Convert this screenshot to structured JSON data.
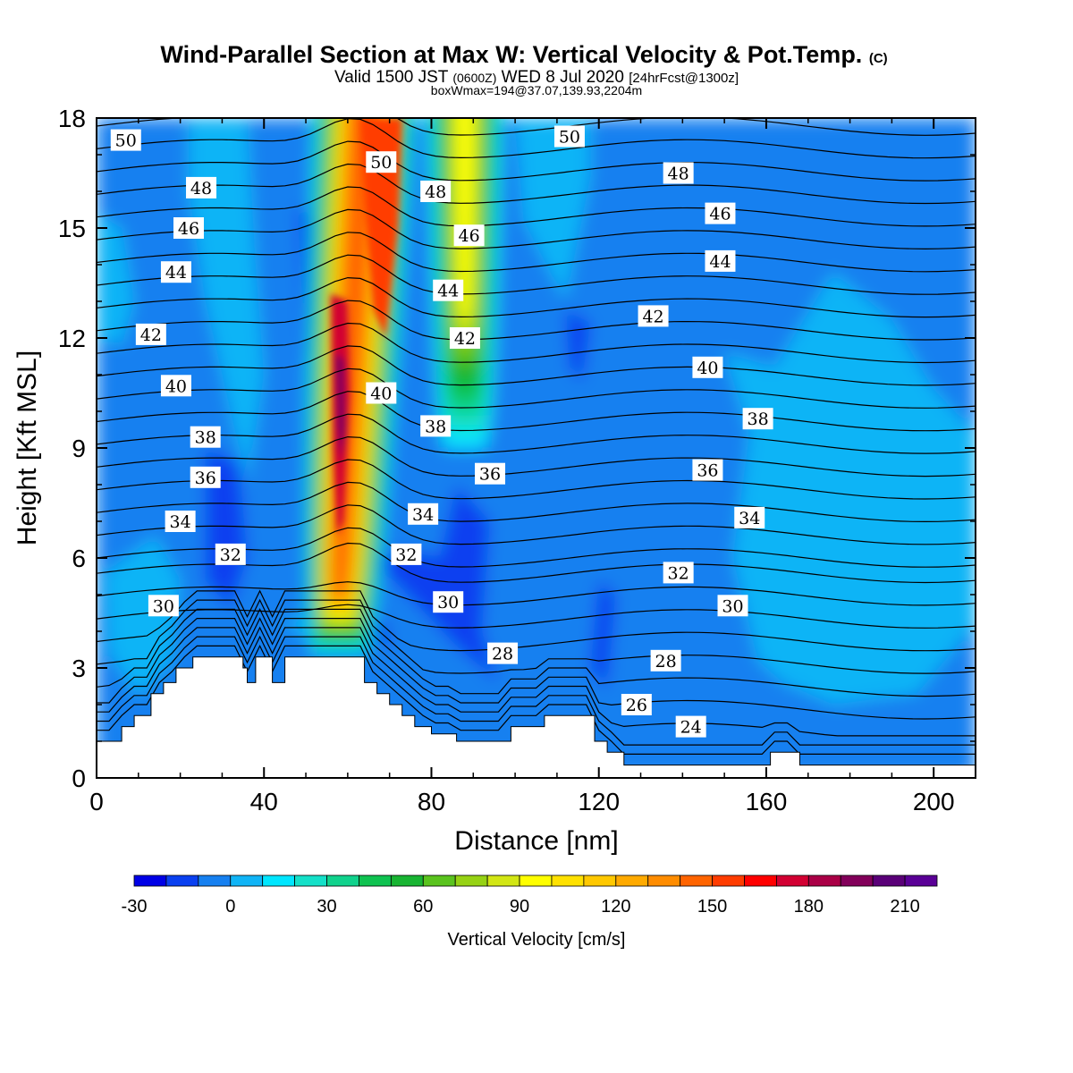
{
  "chart_data": {
    "type": "heatmap",
    "title": "Wind-Parallel Section at Max W: Vertical Velocity & Pot.Temp.",
    "title_mark": "(C)",
    "subtitle": {
      "valid_prefix": "Valid 1500 JST",
      "zulu": "(0600Z)",
      "date": "WED 8 Jul 2020",
      "forecast": "[24hrFcst@1300z]"
    },
    "box_info": "boxWmax=194@37.07,139.93,2204m",
    "xlabel": "Distance [nm]",
    "ylabel": "Height [Kft MSL]",
    "xlim": [
      0,
      210
    ],
    "ylim": [
      0,
      18
    ],
    "x_ticks": [
      "0",
      "40",
      "80",
      "120",
      "160",
      "200"
    ],
    "y_ticks": [
      "0",
      "3",
      "6",
      "9",
      "12",
      "15",
      "18"
    ],
    "colorbar": {
      "title": "Vertical Velocity [cm/s]",
      "min": -30,
      "max": 220,
      "step": 10,
      "tick_labels": [
        "-30",
        "0",
        "30",
        "60",
        "90",
        "120",
        "150",
        "180",
        "210"
      ],
      "colors": [
        "#0000e6",
        "#0a40f0",
        "#1680f0",
        "#10b4f6",
        "#00e6ff",
        "#14e0c8",
        "#10d28c",
        "#0fc250",
        "#18b432",
        "#5ac31e",
        "#96d214",
        "#d2e614",
        "#ffff00",
        "#ffe100",
        "#ffc800",
        "#ffaa00",
        "#ff8c00",
        "#ff6400",
        "#ff3c00",
        "#ff0000",
        "#d20032",
        "#aa0046",
        "#82005a",
        "#5a0078",
        "#5a0096"
      ]
    },
    "vertical_velocity_features": [
      {
        "kind": "updraft",
        "x_range_nm": [
          50,
          68
        ],
        "z_range_kft": [
          4,
          18
        ],
        "peak_cms": 194
      },
      {
        "kind": "updraft",
        "x_range_nm": [
          78,
          98
        ],
        "z_range_kft": [
          9,
          18
        ],
        "peak_cms": 90
      },
      {
        "kind": "downdraft",
        "x_range_nm": [
          66,
          96
        ],
        "z_range_kft": [
          2.5,
          8
        ],
        "min_cms": -25
      },
      {
        "kind": "downdraft",
        "x_range_nm": [
          24,
          36
        ],
        "z_range_kft": [
          5,
          9
        ],
        "min_cms": -20
      }
    ],
    "theta_levels_c": [
      22,
      23,
      24,
      25,
      26,
      27,
      28,
      29,
      30,
      31,
      32,
      33,
      34,
      35,
      36,
      37,
      38,
      39,
      40,
      41,
      42,
      43,
      44,
      45,
      46,
      47,
      48,
      49,
      50,
      51
    ],
    "contour_labels": [
      {
        "text": "50",
        "x": 7,
        "z": 17.4
      },
      {
        "text": "48",
        "x": 25,
        "z": 16.1
      },
      {
        "text": "46",
        "x": 22,
        "z": 15.0
      },
      {
        "text": "44",
        "x": 19,
        "z": 13.8
      },
      {
        "text": "42",
        "x": 13,
        "z": 12.1
      },
      {
        "text": "40",
        "x": 19,
        "z": 10.7
      },
      {
        "text": "38",
        "x": 26,
        "z": 9.3
      },
      {
        "text": "36",
        "x": 26,
        "z": 8.2
      },
      {
        "text": "34",
        "x": 20,
        "z": 7.0
      },
      {
        "text": "32",
        "x": 32,
        "z": 6.1
      },
      {
        "text": "30",
        "x": 16,
        "z": 4.7
      },
      {
        "text": "50",
        "x": 68,
        "z": 16.8
      },
      {
        "text": "48",
        "x": 81,
        "z": 16.0
      },
      {
        "text": "46",
        "x": 89,
        "z": 14.8
      },
      {
        "text": "44",
        "x": 84,
        "z": 13.3
      },
      {
        "text": "42",
        "x": 88,
        "z": 12.0
      },
      {
        "text": "40",
        "x": 68,
        "z": 10.5
      },
      {
        "text": "38",
        "x": 81,
        "z": 9.6
      },
      {
        "text": "36",
        "x": 94,
        "z": 8.3
      },
      {
        "text": "34",
        "x": 78,
        "z": 7.2
      },
      {
        "text": "32",
        "x": 74,
        "z": 6.1
      },
      {
        "text": "30",
        "x": 84,
        "z": 4.8
      },
      {
        "text": "28",
        "x": 97,
        "z": 3.4
      },
      {
        "text": "50",
        "x": 113,
        "z": 17.5
      },
      {
        "text": "48",
        "x": 139,
        "z": 16.5
      },
      {
        "text": "46",
        "x": 149,
        "z": 15.4
      },
      {
        "text": "44",
        "x": 149,
        "z": 14.1
      },
      {
        "text": "42",
        "x": 133,
        "z": 12.6
      },
      {
        "text": "40",
        "x": 146,
        "z": 11.2
      },
      {
        "text": "38",
        "x": 158,
        "z": 9.8
      },
      {
        "text": "36",
        "x": 146,
        "z": 8.4
      },
      {
        "text": "34",
        "x": 156,
        "z": 7.1
      },
      {
        "text": "32",
        "x": 139,
        "z": 5.6
      },
      {
        "text": "30",
        "x": 152,
        "z": 4.7
      },
      {
        "text": "28",
        "x": 136,
        "z": 3.2
      },
      {
        "text": "26",
        "x": 129,
        "z": 2.0
      },
      {
        "text": "24",
        "x": 142,
        "z": 1.4
      }
    ],
    "terrain_kft": [
      [
        0,
        1.0
      ],
      [
        6,
        1.0
      ],
      [
        6,
        1.4
      ],
      [
        9,
        1.4
      ],
      [
        9,
        1.7
      ],
      [
        13,
        1.7
      ],
      [
        13,
        2.3
      ],
      [
        16,
        2.3
      ],
      [
        16,
        2.6
      ],
      [
        19,
        2.6
      ],
      [
        19,
        3.0
      ],
      [
        23,
        3.0
      ],
      [
        23,
        3.3
      ],
      [
        35,
        3.3
      ],
      [
        35,
        3.0
      ],
      [
        36,
        3.0
      ],
      [
        36,
        2.6
      ],
      [
        38,
        2.6
      ],
      [
        38,
        3.3
      ],
      [
        42,
        3.3
      ],
      [
        42,
        2.6
      ],
      [
        45,
        2.6
      ],
      [
        45,
        3.3
      ],
      [
        64,
        3.3
      ],
      [
        64,
        2.6
      ],
      [
        67,
        2.6
      ],
      [
        67,
        2.3
      ],
      [
        70,
        2.3
      ],
      [
        70,
        2.0
      ],
      [
        73,
        2.0
      ],
      [
        73,
        1.7
      ],
      [
        76,
        1.7
      ],
      [
        76,
        1.4
      ],
      [
        80,
        1.4
      ],
      [
        80,
        1.2
      ],
      [
        86,
        1.2
      ],
      [
        86,
        1.0
      ],
      [
        99,
        1.0
      ],
      [
        99,
        1.4
      ],
      [
        107,
        1.4
      ],
      [
        107,
        1.7
      ],
      [
        119,
        1.7
      ],
      [
        119,
        1.0
      ],
      [
        122,
        1.0
      ],
      [
        122,
        0.7
      ],
      [
        126,
        0.7
      ],
      [
        126,
        0.35
      ],
      [
        161,
        0.35
      ],
      [
        161,
        0.7
      ],
      [
        168,
        0.7
      ],
      [
        168,
        0.35
      ],
      [
        210,
        0.35
      ]
    ]
  }
}
